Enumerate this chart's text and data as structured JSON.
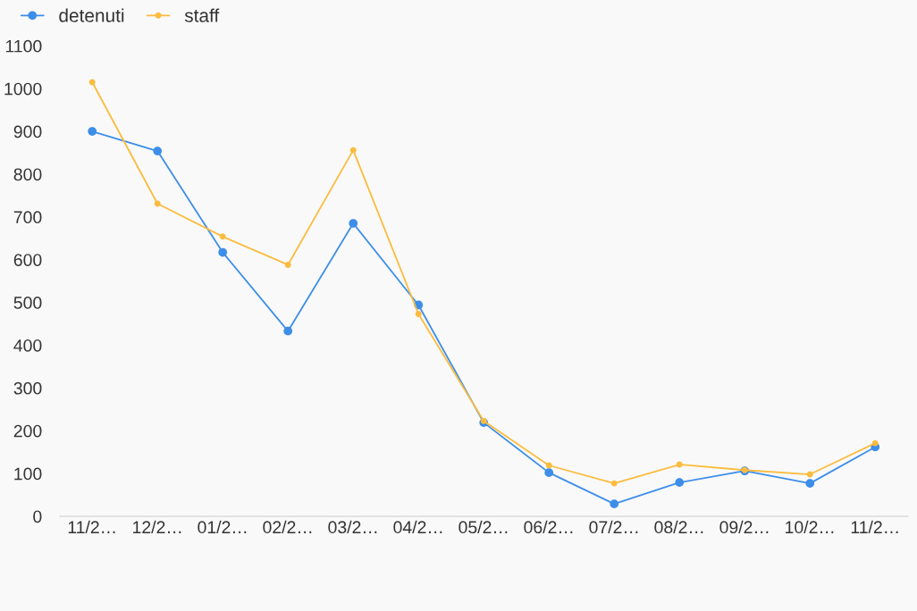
{
  "chart_data": {
    "type": "line",
    "categories": [
      "11/2…",
      "12/2…",
      "01/2…",
      "02/2…",
      "03/2…",
      "04/2…",
      "05/2…",
      "06/2…",
      "07/2…",
      "08/2…",
      "09/2…",
      "10/2…",
      "11/2…"
    ],
    "series": [
      {
        "name": "detenuti",
        "color": "#3d8ee9",
        "values": [
          900,
          854,
          617,
          433,
          685,
          494,
          219,
          102,
          29,
          79,
          106,
          77,
          162
        ]
      },
      {
        "name": "staff",
        "color": "#fbbc3e",
        "values": [
          1015,
          731,
          654,
          588,
          856,
          473,
          223,
          119,
          77,
          121,
          108,
          98,
          171
        ]
      }
    ],
    "ylim": [
      0,
      1100
    ],
    "yticks": [
      0,
      100,
      200,
      300,
      400,
      500,
      600,
      700,
      800,
      900,
      1000,
      1100
    ],
    "grid": false,
    "legend": "top left",
    "marker": "circle",
    "line_style": "solid"
  }
}
